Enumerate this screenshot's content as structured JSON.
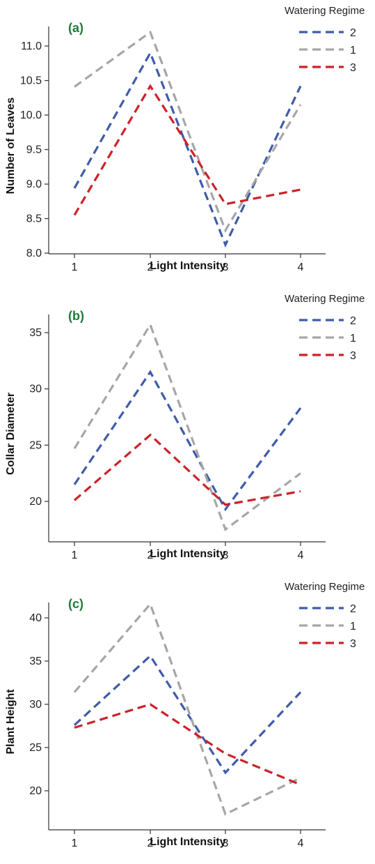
{
  "chart_data": [
    {
      "type": "line",
      "panel_label": "(a)",
      "title": "",
      "xlabel": "Light Intensity",
      "ylabel": "Number of Leaves",
      "x": [
        1,
        2,
        3,
        4
      ],
      "x_ticks": [
        "1",
        "2",
        "3",
        "4"
      ],
      "ylim": [
        8.0,
        11.5
      ],
      "y_ticks": [
        "8.0",
        "8.5",
        "9.0",
        "9.5",
        "10.0",
        "10.5",
        "11.0"
      ],
      "grid": false,
      "line_style": "dashed",
      "legend": {
        "title": "Watering Regime",
        "placement": "top-right"
      },
      "series": [
        {
          "name": "2",
          "color": "#3f5ba9",
          "values": [
            8.94,
            10.9,
            8.12,
            10.42
          ]
        },
        {
          "name": "1",
          "color": "#a6a6a6",
          "values": [
            10.41,
            11.2,
            8.33,
            10.15
          ]
        },
        {
          "name": "3",
          "color": "#cc2229",
          "values": [
            8.55,
            10.42,
            8.71,
            8.92
          ]
        }
      ]
    },
    {
      "type": "line",
      "panel_label": "(b)",
      "title": "",
      "xlabel": "Light Intensity",
      "ylabel": "Collar Diameter",
      "x": [
        1,
        2,
        3,
        4
      ],
      "x_ticks": [
        "1",
        "2",
        "3",
        "4"
      ],
      "ylim": [
        16.5,
        36.5
      ],
      "y_ticks": [
        "20",
        "25",
        "30",
        "35"
      ],
      "grid": false,
      "line_style": "dashed",
      "legend": {
        "title": "Watering Regime",
        "placement": "top-right"
      },
      "series": [
        {
          "name": "2",
          "color": "#3f5ba9",
          "values": [
            21.5,
            31.5,
            19.3,
            28.3
          ]
        },
        {
          "name": "1",
          "color": "#a6a6a6",
          "values": [
            24.7,
            35.7,
            17.5,
            22.5
          ]
        },
        {
          "name": "3",
          "color": "#cc2229",
          "values": [
            20.1,
            25.9,
            19.7,
            20.9
          ]
        }
      ]
    },
    {
      "type": "line",
      "panel_label": "(c)",
      "title": "",
      "xlabel": "Light Intensity",
      "ylabel": "Plant Height",
      "x": [
        1,
        2,
        3,
        4
      ],
      "x_ticks": [
        "1",
        "2",
        "3",
        "4"
      ],
      "ylim": [
        16.5,
        42.0
      ],
      "y_ticks": [
        "20",
        "25",
        "30",
        "35",
        "40"
      ],
      "grid": false,
      "line_style": "dashed",
      "legend": {
        "title": "Watering Regime",
        "placement": "top-right"
      },
      "series": [
        {
          "name": "2",
          "color": "#3f5ba9",
          "values": [
            27.6,
            35.6,
            22.1,
            31.4
          ]
        },
        {
          "name": "1",
          "color": "#a6a6a6",
          "values": [
            31.4,
            41.6,
            17.3,
            21.5
          ]
        },
        {
          "name": "3",
          "color": "#cc2229",
          "values": [
            27.3,
            30.0,
            24.3,
            20.7
          ]
        }
      ]
    }
  ],
  "panel_label_color": "#1e7b3a"
}
